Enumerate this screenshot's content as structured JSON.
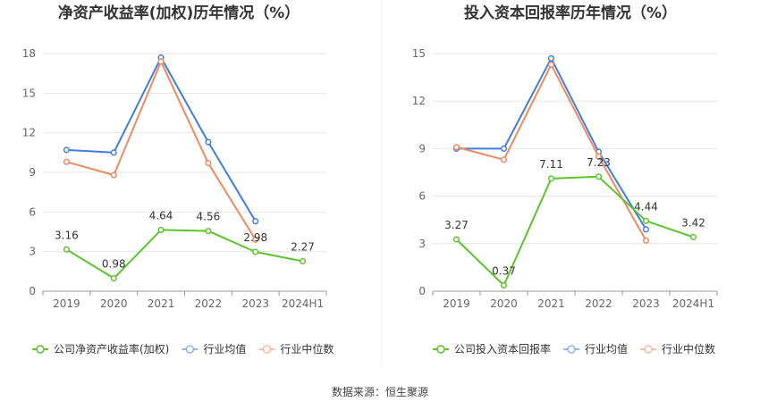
{
  "source": "数据来源：恒生聚源",
  "colors": {
    "company": "#5cc42a",
    "avg": "#3f7de0",
    "median": "#f08860",
    "grid": "#e6e6e6",
    "axis": "#999999"
  },
  "chart_data": [
    {
      "type": "line",
      "title": "净资产收益率(加权)历年情况（%）",
      "categories": [
        "2019",
        "2020",
        "2021",
        "2022",
        "2023",
        "2024H1"
      ],
      "ylim": [
        0,
        18
      ],
      "yticks": [
        "0",
        "3",
        "6",
        "9",
        "12",
        "15",
        "18"
      ],
      "grid": true,
      "legend_position": "bottom-left",
      "series": [
        {
          "name": "公司净资产收益率(加权)",
          "key": "company",
          "values": [
            3.16,
            0.98,
            4.64,
            4.56,
            2.98,
            2.27
          ],
          "labels": [
            "3.16",
            "0.98",
            "4.64",
            "4.56",
            "2.98",
            "2.27"
          ]
        },
        {
          "name": "行业均值",
          "key": "avg",
          "values": [
            10.7,
            10.5,
            17.7,
            11.3,
            5.3,
            null
          ]
        },
        {
          "name": "行业中位数",
          "key": "median",
          "values": [
            9.8,
            8.8,
            17.4,
            9.7,
            3.9,
            null
          ]
        }
      ]
    },
    {
      "type": "line",
      "title": "投入资本回报率历年情况（%）",
      "categories": [
        "2019",
        "2020",
        "2021",
        "2022",
        "2023",
        "2024H1"
      ],
      "ylim": [
        0,
        15
      ],
      "yticks": [
        "0",
        "3",
        "6",
        "9",
        "12",
        "15"
      ],
      "grid": true,
      "legend_position": "bottom-left",
      "series": [
        {
          "name": "公司投入资本回报率",
          "key": "company",
          "values": [
            3.27,
            0.37,
            7.11,
            7.23,
            4.44,
            3.42
          ],
          "labels": [
            "3.27",
            "0.37",
            "7.11",
            "7.23",
            "4.44",
            "3.42"
          ]
        },
        {
          "name": "行业均值",
          "key": "avg",
          "values": [
            9.0,
            9.0,
            14.7,
            8.8,
            3.9,
            null
          ]
        },
        {
          "name": "行业中位数",
          "key": "median",
          "values": [
            9.1,
            8.3,
            14.3,
            8.5,
            3.2,
            null
          ]
        }
      ]
    }
  ]
}
